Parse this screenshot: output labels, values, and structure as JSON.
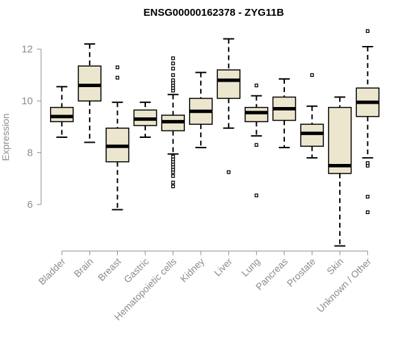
{
  "chart_data": {
    "type": "box",
    "title": "ENSG00000162378 - ZYG11B",
    "ylabel": "Expression",
    "xlabel": "",
    "ylim": [
      4.2,
      13.0
    ],
    "yticks": [
      6,
      8,
      10,
      12
    ],
    "grid": false,
    "colors": {
      "box_fill": "#ede6cf",
      "stroke": "#000000",
      "axis": "#8c8c8c"
    },
    "categories": [
      "Bladder",
      "Brain",
      "Breast",
      "Gastric",
      "Hematopoietic cells",
      "Kidney",
      "Liver",
      "Lung",
      "Pancreas",
      "Prostate",
      "Skin",
      "Unknown / Other"
    ],
    "boxes": [
      {
        "category": "Bladder",
        "whisker_low": 8.6,
        "q1": 9.2,
        "median": 9.4,
        "q3": 9.75,
        "whisker_high": 10.55,
        "outliers": []
      },
      {
        "category": "Brain",
        "whisker_low": 8.4,
        "q1": 10.0,
        "median": 10.6,
        "q3": 11.35,
        "whisker_high": 12.2,
        "outliers": []
      },
      {
        "category": "Breast",
        "whisker_low": 5.8,
        "q1": 7.65,
        "median": 8.25,
        "q3": 8.95,
        "whisker_high": 9.95,
        "outliers": [
          10.9,
          11.3
        ]
      },
      {
        "category": "Gastric",
        "whisker_low": 8.6,
        "q1": 9.05,
        "median": 9.3,
        "q3": 9.65,
        "whisker_high": 9.95,
        "outliers": []
      },
      {
        "category": "Hematopoietic cells",
        "whisker_low": 7.95,
        "q1": 8.85,
        "median": 9.2,
        "q3": 9.45,
        "whisker_high": 10.25,
        "outliers": [
          6.7,
          6.85,
          7.1,
          7.25,
          7.35,
          7.45,
          7.55,
          7.65,
          7.75,
          7.85,
          10.4,
          10.5,
          10.6,
          10.7,
          10.8,
          11.0,
          11.25,
          11.45,
          11.65
        ]
      },
      {
        "category": "Kidney",
        "whisker_low": 8.2,
        "q1": 9.1,
        "median": 9.6,
        "q3": 10.1,
        "whisker_high": 11.1,
        "outliers": []
      },
      {
        "category": "Liver",
        "whisker_low": 8.95,
        "q1": 10.1,
        "median": 10.8,
        "q3": 11.2,
        "whisker_high": 12.4,
        "outliers": [
          7.25
        ]
      },
      {
        "category": "Lung",
        "whisker_low": 8.65,
        "q1": 9.2,
        "median": 9.55,
        "q3": 9.75,
        "whisker_high": 10.2,
        "outliers": [
          6.35,
          8.3,
          10.6
        ]
      },
      {
        "category": "Pancreas",
        "whisker_low": 8.2,
        "q1": 9.25,
        "median": 9.7,
        "q3": 10.15,
        "whisker_high": 10.85,
        "outliers": []
      },
      {
        "category": "Prostate",
        "whisker_low": 7.8,
        "q1": 8.25,
        "median": 8.75,
        "q3": 9.1,
        "whisker_high": 9.8,
        "outliers": [
          11.0
        ]
      },
      {
        "category": "Skin",
        "whisker_low": 4.4,
        "q1": 7.2,
        "median": 7.5,
        "q3": 9.75,
        "whisker_high": 10.15,
        "outliers": []
      },
      {
        "category": "Unknown / Other",
        "whisker_low": 7.8,
        "q1": 9.4,
        "median": 9.95,
        "q3": 10.5,
        "whisker_high": 12.1,
        "outliers": [
          5.7,
          6.3,
          7.5,
          7.6,
          12.7
        ]
      }
    ]
  }
}
